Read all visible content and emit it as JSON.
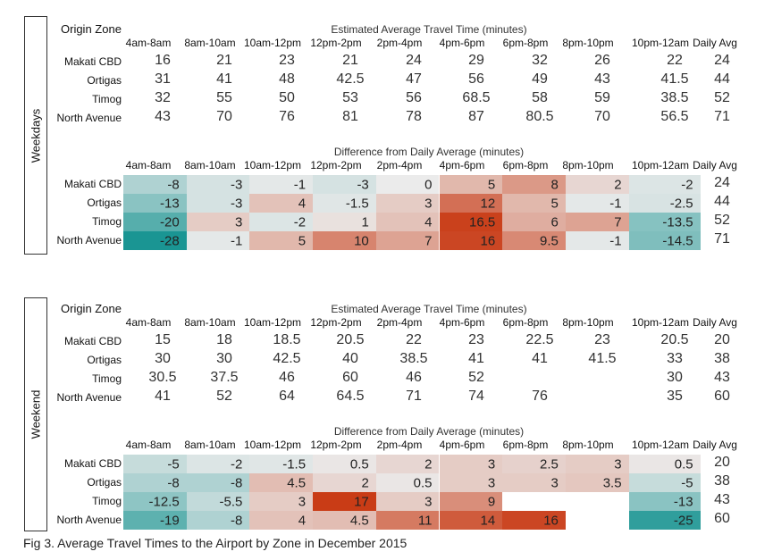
{
  "caption": "Fig 3. Average Travel Times to the Airport by Zone in December 2015",
  "colors": {
    "negative": "#1a9593",
    "positive": "#c93c16",
    "neutral": "#ebebeb"
  },
  "chart_data": [
    {
      "type": "table",
      "panel": "Weekdays",
      "origin_label": "Origin Zone",
      "title": "Estimated Average Travel Time (minutes)",
      "columns": [
        "4am-8am",
        "8am-10am",
        "10am-12pm",
        "12pm-2pm",
        "2pm-4pm",
        "4pm-6pm",
        "6pm-8pm",
        "8pm-10pm",
        "10pm-12am",
        "Daily Avg"
      ],
      "rows": [
        {
          "zone": "Makati CBD",
          "values": [
            16,
            21,
            23,
            21,
            24,
            29,
            32,
            26,
            22
          ],
          "avg": 24
        },
        {
          "zone": "Ortigas",
          "values": [
            31,
            41,
            48,
            42.5,
            47,
            56,
            49,
            43,
            41.5
          ],
          "avg": 44
        },
        {
          "zone": "Timog",
          "values": [
            32,
            55,
            50,
            53,
            56,
            68.5,
            58,
            59,
            38.5
          ],
          "avg": 52
        },
        {
          "zone": "North Avenue",
          "values": [
            43,
            70,
            76,
            81,
            78,
            87,
            80.5,
            70,
            56.5
          ],
          "avg": 71
        }
      ]
    },
    {
      "type": "heatmap",
      "panel": "Weekdays",
      "title": "Difference from Daily Average (minutes)",
      "columns": [
        "4am-8am",
        "8am-10am",
        "10am-12pm",
        "12pm-2pm",
        "2pm-4pm",
        "4pm-6pm",
        "6pm-8pm",
        "8pm-10pm",
        "10pm-12am",
        "Daily Avg"
      ],
      "rows": [
        {
          "zone": "Makati CBD",
          "values": [
            -8,
            -3,
            -1,
            -3,
            0,
            5,
            8,
            2,
            -2
          ],
          "avg": 24
        },
        {
          "zone": "Ortigas",
          "values": [
            -13,
            -3,
            4,
            -1.5,
            3,
            12,
            5,
            -1,
            -2.5
          ],
          "avg": 44
        },
        {
          "zone": "Timog",
          "values": [
            -20,
            3,
            -2,
            1,
            4,
            16.5,
            6,
            7,
            -13.5
          ],
          "avg": 52
        },
        {
          "zone": "North Avenue",
          "values": [
            -28,
            -1,
            5,
            10,
            7,
            16,
            9.5,
            -1,
            -14.5
          ],
          "avg": 71
        }
      ]
    },
    {
      "type": "table",
      "panel": "Weekend",
      "origin_label": "Origin Zone",
      "title": "Estimated Average Travel Time (minutes)",
      "columns": [
        "4am-8am",
        "8am-10am",
        "10am-12pm",
        "12pm-2pm",
        "2pm-4pm",
        "4pm-6pm",
        "6pm-8pm",
        "8pm-10pm",
        "10pm-12am",
        "Daily Avg"
      ],
      "rows": [
        {
          "zone": "Makati CBD",
          "values": [
            15,
            18,
            18.5,
            20.5,
            22,
            23,
            22.5,
            23,
            20.5
          ],
          "avg": 20
        },
        {
          "zone": "Ortigas",
          "values": [
            30,
            30,
            42.5,
            40,
            38.5,
            41,
            41,
            41.5,
            33
          ],
          "avg": 38
        },
        {
          "zone": "Timog",
          "values": [
            30.5,
            37.5,
            46,
            60,
            46,
            52,
            null,
            null,
            30
          ],
          "avg": 43
        },
        {
          "zone": "North Avenue",
          "values": [
            41,
            52,
            64,
            64.5,
            71,
            74,
            76,
            null,
            35
          ],
          "avg": 60
        }
      ]
    },
    {
      "type": "heatmap",
      "panel": "Weekend",
      "title": "Difference from Daily Average (minutes)",
      "columns": [
        "4am-8am",
        "8am-10am",
        "10am-12pm",
        "12pm-2pm",
        "2pm-4pm",
        "4pm-6pm",
        "6pm-8pm",
        "8pm-10pm",
        "10pm-12am",
        "Daily Avg"
      ],
      "rows": [
        {
          "zone": "Makati CBD",
          "values": [
            -5,
            -2,
            -1.5,
            0.5,
            2,
            3,
            2.5,
            3,
            0.5
          ],
          "avg": 20
        },
        {
          "zone": "Ortigas",
          "values": [
            -8,
            -8,
            4.5,
            2,
            0.5,
            3,
            3,
            3.5,
            -5
          ],
          "avg": 38
        },
        {
          "zone": "Timog",
          "values": [
            -12.5,
            -5.5,
            3,
            17,
            3,
            9,
            null,
            null,
            -13
          ],
          "avg": 43
        },
        {
          "zone": "North Avenue",
          "values": [
            -19,
            -8,
            4,
            4.5,
            11,
            14,
            16,
            null,
            -25
          ],
          "avg": 60
        }
      ]
    }
  ]
}
